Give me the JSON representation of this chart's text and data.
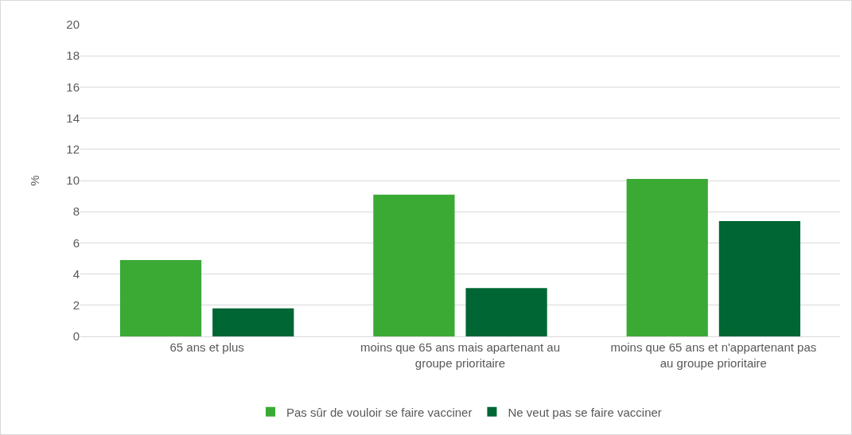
{
  "chart_data": {
    "type": "bar",
    "ylabel": "%",
    "categories": [
      "65 ans et plus",
      "moins que 65 ans mais apartenant au groupe prioritaire",
      "moins que 65 ans et n'appartenant pas au groupe prioritaire"
    ],
    "series": [
      {
        "name": "Pas sûr de vouloir se faire vacciner",
        "color": "#3aaa35",
        "values": [
          4.9,
          9.1,
          10.1
        ]
      },
      {
        "name": "Ne veut pas se faire vacciner",
        "color": "#006633",
        "values": [
          1.8,
          3.1,
          7.4
        ]
      }
    ],
    "ylim": [
      0,
      20
    ],
    "yticks": [
      0,
      2,
      4,
      6,
      8,
      10,
      12,
      14,
      16,
      18,
      20
    ],
    "grid": "y",
    "legend": "bottom"
  }
}
